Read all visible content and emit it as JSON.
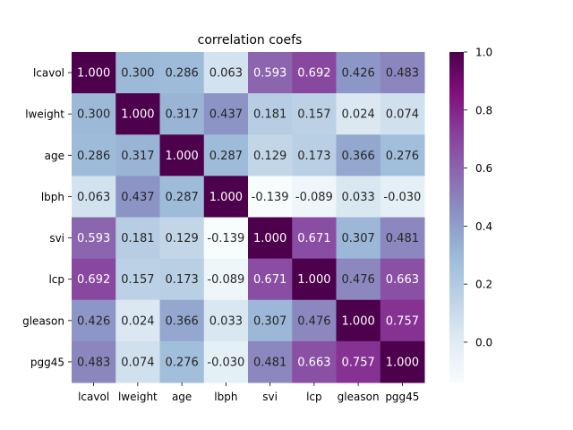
{
  "chart_data": {
    "type": "heatmap",
    "title": "correlation coefs",
    "labels": [
      "lcavol",
      "lweight",
      "age",
      "lbph",
      "svi",
      "lcp",
      "gleason",
      "pgg45"
    ],
    "matrix": [
      [
        1.0,
        0.3,
        0.286,
        0.063,
        0.593,
        0.692,
        0.426,
        0.483
      ],
      [
        0.3,
        1.0,
        0.317,
        0.437,
        0.181,
        0.157,
        0.024,
        0.074
      ],
      [
        0.286,
        0.317,
        1.0,
        0.287,
        0.129,
        0.173,
        0.366,
        0.276
      ],
      [
        0.063,
        0.437,
        0.287,
        1.0,
        -0.139,
        -0.089,
        0.033,
        -0.03
      ],
      [
        0.593,
        0.181,
        0.129,
        -0.139,
        1.0,
        0.671,
        0.307,
        0.481
      ],
      [
        0.692,
        0.157,
        0.173,
        -0.089,
        0.671,
        1.0,
        0.476,
        0.663
      ],
      [
        0.426,
        0.024,
        0.366,
        0.033,
        0.307,
        0.476,
        1.0,
        0.757
      ],
      [
        0.483,
        0.074,
        0.276,
        -0.03,
        0.481,
        0.663,
        0.757,
        1.0
      ]
    ],
    "colormap": "BuPu",
    "vmin": -0.139,
    "vmax": 1.0,
    "colorbar_ticks": [
      0.0,
      0.2,
      0.4,
      0.6,
      0.8,
      1.0
    ],
    "colorbar_tick_labels": [
      "0.0",
      "0.2",
      "0.4",
      "0.6",
      "0.8",
      "1.0"
    ],
    "cell_value_format": "3-decimal",
    "text_color_light": "#ffffff",
    "text_color_dark": "#262626"
  }
}
